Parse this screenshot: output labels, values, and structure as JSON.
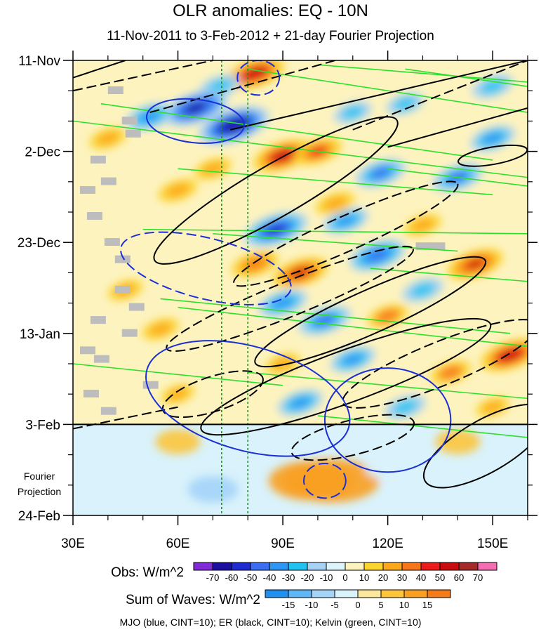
{
  "title": "OLR anomalies: EQ - 10N",
  "subtitle": "11-Nov-2011 to 3-Feb-2012 + 21-day Fourier Projection",
  "fourier_label": "Fourier Projection",
  "footer": "MJO (blue, CINT=10); ER (black, CINT=10); Kelvin (green, CINT=10)",
  "colors": {
    "mjo": "#1a2fd6",
    "er": "#000000",
    "kelvin": "#2ee02e",
    "reference_lines": "#1f8f1f",
    "missing": "#bdbdbd"
  },
  "chart_data": {
    "type": "heatmap",
    "x_axis": {
      "range": [
        30,
        160
      ],
      "ticks": [
        30,
        60,
        90,
        120,
        150
      ],
      "tick_labels": [
        "30E",
        "60E",
        "90E",
        "120E",
        "150E"
      ]
    },
    "y_axis": {
      "range": [
        0,
        105
      ],
      "unit": "days since 11-Nov-2011",
      "ticks": [
        0,
        21,
        42,
        63,
        84,
        105
      ],
      "tick_labels": [
        "11-Nov",
        "2-Dec",
        "23-Dec",
        "13-Jan",
        "3-Feb",
        "24-Feb"
      ]
    },
    "observed_end_day": 84,
    "reference_longitudes": [
      72.5,
      80
    ],
    "obs_colorbar": {
      "label": "Obs: W/m^2",
      "levels": [
        -70,
        -60,
        -50,
        -40,
        -30,
        -20,
        -10,
        0,
        10,
        20,
        30,
        40,
        50,
        60,
        70
      ],
      "colors": [
        "#7f2bd6",
        "#1c0fa0",
        "#1f2bd1",
        "#3c6ef2",
        "#2f96f5",
        "#22c3f0",
        "#a7d2f6",
        "#ddf4fb",
        "#fdf3bf",
        "#fcd530",
        "#fca81c",
        "#f7761a",
        "#ea1c1c",
        "#c70d0d",
        "#a52a2a",
        "#f36fb2"
      ]
    },
    "waves_colorbar": {
      "label": "Sum of Waves: W/m^2",
      "levels": [
        -15,
        -10,
        -5,
        0,
        5,
        10,
        15
      ],
      "colors": [
        "#1e90f0",
        "#5fb7f7",
        "#a4d4f8",
        "#d9f2fb",
        "#fde79b",
        "#fcc53a",
        "#f9a020",
        "#f57a18"
      ]
    },
    "obs_field_blobs": [
      {
        "lon": 82,
        "day": 3,
        "v": 55
      },
      {
        "lon": 72,
        "day": 6,
        "v": -30
      },
      {
        "lon": 65,
        "day": 11,
        "v": -62
      },
      {
        "lon": 76,
        "day": 15,
        "v": -70
      },
      {
        "lon": 52,
        "day": 13,
        "v": -40
      },
      {
        "lon": 40,
        "day": 18,
        "v": 25
      },
      {
        "lon": 90,
        "day": 22,
        "v": 55
      },
      {
        "lon": 100,
        "day": 21,
        "v": 40
      },
      {
        "lon": 118,
        "day": 26,
        "v": -42
      },
      {
        "lon": 140,
        "day": 27,
        "v": -42
      },
      {
        "lon": 150,
        "day": 18,
        "v": -35
      },
      {
        "lon": 150,
        "day": 6,
        "v": -30
      },
      {
        "lon": 110,
        "day": 12,
        "v": -25
      },
      {
        "lon": 125,
        "day": 10,
        "v": -25
      },
      {
        "lon": 60,
        "day": 30,
        "v": 28
      },
      {
        "lon": 70,
        "day": 25,
        "v": 25
      },
      {
        "lon": 108,
        "day": 37,
        "v": -35
      },
      {
        "lon": 88,
        "day": 39,
        "v": -60
      },
      {
        "lon": 117,
        "day": 45,
        "v": -50
      },
      {
        "lon": 95,
        "day": 49,
        "v": 50
      },
      {
        "lon": 82,
        "day": 47,
        "v": 38
      },
      {
        "lon": 145,
        "day": 47,
        "v": 50
      },
      {
        "lon": 130,
        "day": 53,
        "v": -30
      },
      {
        "lon": 90,
        "day": 56,
        "v": -40
      },
      {
        "lon": 102,
        "day": 60,
        "v": -45
      },
      {
        "lon": 120,
        "day": 59,
        "v": 30
      },
      {
        "lon": 45,
        "day": 53,
        "v": 22
      },
      {
        "lon": 55,
        "day": 62,
        "v": 25
      },
      {
        "lon": 155,
        "day": 68,
        "v": 55
      },
      {
        "lon": 138,
        "day": 72,
        "v": 30
      },
      {
        "lon": 110,
        "day": 69,
        "v": -35
      },
      {
        "lon": 90,
        "day": 70,
        "v": 22
      },
      {
        "lon": 95,
        "day": 79,
        "v": -35
      },
      {
        "lon": 60,
        "day": 77,
        "v": 20
      },
      {
        "lon": 125,
        "day": 80,
        "v": -30
      },
      {
        "lon": 150,
        "day": 80,
        "v": 20
      },
      {
        "lon": 105,
        "day": 33,
        "v": 28
      },
      {
        "lon": 130,
        "day": 38,
        "v": 25
      }
    ],
    "waves_field_blobs": [
      {
        "lon": 98,
        "day": 97,
        "v": 12
      },
      {
        "lon": 104,
        "day": 97,
        "v": 14
      },
      {
        "lon": 70,
        "day": 99,
        "v": -6
      },
      {
        "lon": 140,
        "day": 88,
        "v": 5
      },
      {
        "lon": 60,
        "day": 88,
        "v": 5
      },
      {
        "lon": 120,
        "day": 94,
        "v": -5
      },
      {
        "lon": 40,
        "day": 92,
        "v": -4
      }
    ],
    "missing_cells": [
      {
        "lon": 40,
        "day": 6
      },
      {
        "lon": 44,
        "day": 13
      },
      {
        "lon": 45,
        "day": 16
      },
      {
        "lon": 35,
        "day": 22
      },
      {
        "lon": 38,
        "day": 27
      },
      {
        "lon": 32,
        "day": 29
      },
      {
        "lon": 34,
        "day": 35
      },
      {
        "lon": 39,
        "day": 41
      },
      {
        "lon": 42,
        "day": 45
      },
      {
        "lon": 42,
        "day": 52
      },
      {
        "lon": 46,
        "day": 56
      },
      {
        "lon": 35,
        "day": 59
      },
      {
        "lon": 44,
        "day": 62
      },
      {
        "lon": 32,
        "day": 66
      },
      {
        "lon": 36,
        "day": 68
      },
      {
        "lon": 50,
        "day": 74
      },
      {
        "lon": 33,
        "day": 76
      },
      {
        "lon": 38,
        "day": 80
      },
      {
        "lon": 128,
        "day": 42
      },
      {
        "lon": 132,
        "day": 42
      }
    ],
    "mjo_contours": [
      {
        "lon": 65,
        "day": 14,
        "rx": 14,
        "rd": 5,
        "rot": 6,
        "dash": false
      },
      {
        "lon": 83,
        "day": 4,
        "rx": 6,
        "rd": 4,
        "rot": 0,
        "dash": true
      },
      {
        "lon": 68,
        "day": 48,
        "rx": 25,
        "rd": 7,
        "rot": 14,
        "dash": true
      },
      {
        "lon": 80,
        "day": 78,
        "rx": 30,
        "rd": 12,
        "rot": 16,
        "dash": false
      },
      {
        "lon": 120,
        "day": 83,
        "rx": 18,
        "rd": 12,
        "rot": 0,
        "dash": false
      },
      {
        "lon": 102,
        "day": 97,
        "rx": 6,
        "rd": 4,
        "rot": 0,
        "dash": true
      }
    ],
    "er_contours": [
      {
        "lon": 88,
        "day": 30,
        "rx": 40,
        "rd": 6,
        "rot": -30,
        "dash": false
      },
      {
        "lon": 115,
        "day": 58,
        "rx": 36,
        "rd": 5,
        "rot": -24,
        "dash": false
      },
      {
        "lon": 108,
        "day": 73,
        "rx": 44,
        "rd": 6,
        "rot": -20,
        "dash": false
      },
      {
        "lon": 70,
        "day": 77,
        "rx": 15,
        "rd": 4,
        "rot": -18,
        "dash": true
      },
      {
        "lon": 108,
        "day": 40,
        "rx": 35,
        "rd": 4,
        "rot": -24,
        "dash": true
      },
      {
        "lon": 92,
        "day": 55,
        "rx": 38,
        "rd": 4,
        "rot": -22,
        "dash": true
      },
      {
        "lon": 135,
        "day": 70,
        "rx": 30,
        "rd": 5,
        "rot": -22,
        "dash": true
      },
      {
        "lon": 110,
        "day": 87,
        "rx": 18,
        "rd": 4,
        "rot": -14,
        "dash": true
      },
      {
        "lon": 148,
        "day": 89,
        "rx": 20,
        "rd": 6,
        "rot": -30,
        "dash": false
      },
      {
        "lon": 150,
        "day": 22,
        "rx": 10,
        "rd": 2,
        "rot": -10,
        "dash": false
      }
    ],
    "er_lines": [
      {
        "x1": 75,
        "d1": 16,
        "x2": 160,
        "d2": 0,
        "dash": false
      },
      {
        "x1": 52,
        "d1": 12,
        "x2": 105,
        "d2": 0,
        "dash": true
      },
      {
        "x1": 30,
        "d1": 4,
        "x2": 45,
        "d2": 0,
        "dash": false
      },
      {
        "x1": 30,
        "d1": 7,
        "x2": 70,
        "d2": 0,
        "dash": true
      },
      {
        "x1": 110,
        "d1": 16,
        "x2": 160,
        "d2": 0,
        "dash": true
      },
      {
        "x1": 120,
        "d1": 20,
        "x2": 160,
        "d2": 11,
        "dash": false
      },
      {
        "x1": 30,
        "d1": 85,
        "x2": 60,
        "d2": 80,
        "dash": true
      }
    ],
    "kelvin_segments": [
      {
        "x1": 38,
        "d1": 10,
        "x2": 150,
        "d2": 23
      },
      {
        "x1": 30,
        "d1": 14,
        "x2": 160,
        "d2": 27
      },
      {
        "x1": 80,
        "d1": 2,
        "x2": 160,
        "d2": 12
      },
      {
        "x1": 100,
        "d1": 1,
        "x2": 160,
        "d2": 5
      },
      {
        "x1": 125,
        "d1": 2,
        "x2": 160,
        "d2": 6
      },
      {
        "x1": 50,
        "d1": 39,
        "x2": 160,
        "d2": 40
      },
      {
        "x1": 70,
        "d1": 40,
        "x2": 140,
        "d2": 44
      },
      {
        "x1": 115,
        "d1": 48,
        "x2": 160,
        "d2": 51
      },
      {
        "x1": 55,
        "d1": 55,
        "x2": 155,
        "d2": 63
      },
      {
        "x1": 60,
        "d1": 57,
        "x2": 160,
        "d2": 66
      },
      {
        "x1": 80,
        "d1": 72,
        "x2": 160,
        "d2": 78
      },
      {
        "x1": 30,
        "d1": 70,
        "x2": 90,
        "d2": 75
      },
      {
        "x1": 100,
        "d1": 82,
        "x2": 160,
        "d2": 87
      },
      {
        "x1": 120,
        "d1": 25,
        "x2": 160,
        "d2": 29
      },
      {
        "x1": 60,
        "d1": 25,
        "x2": 150,
        "d2": 31
      }
    ]
  }
}
